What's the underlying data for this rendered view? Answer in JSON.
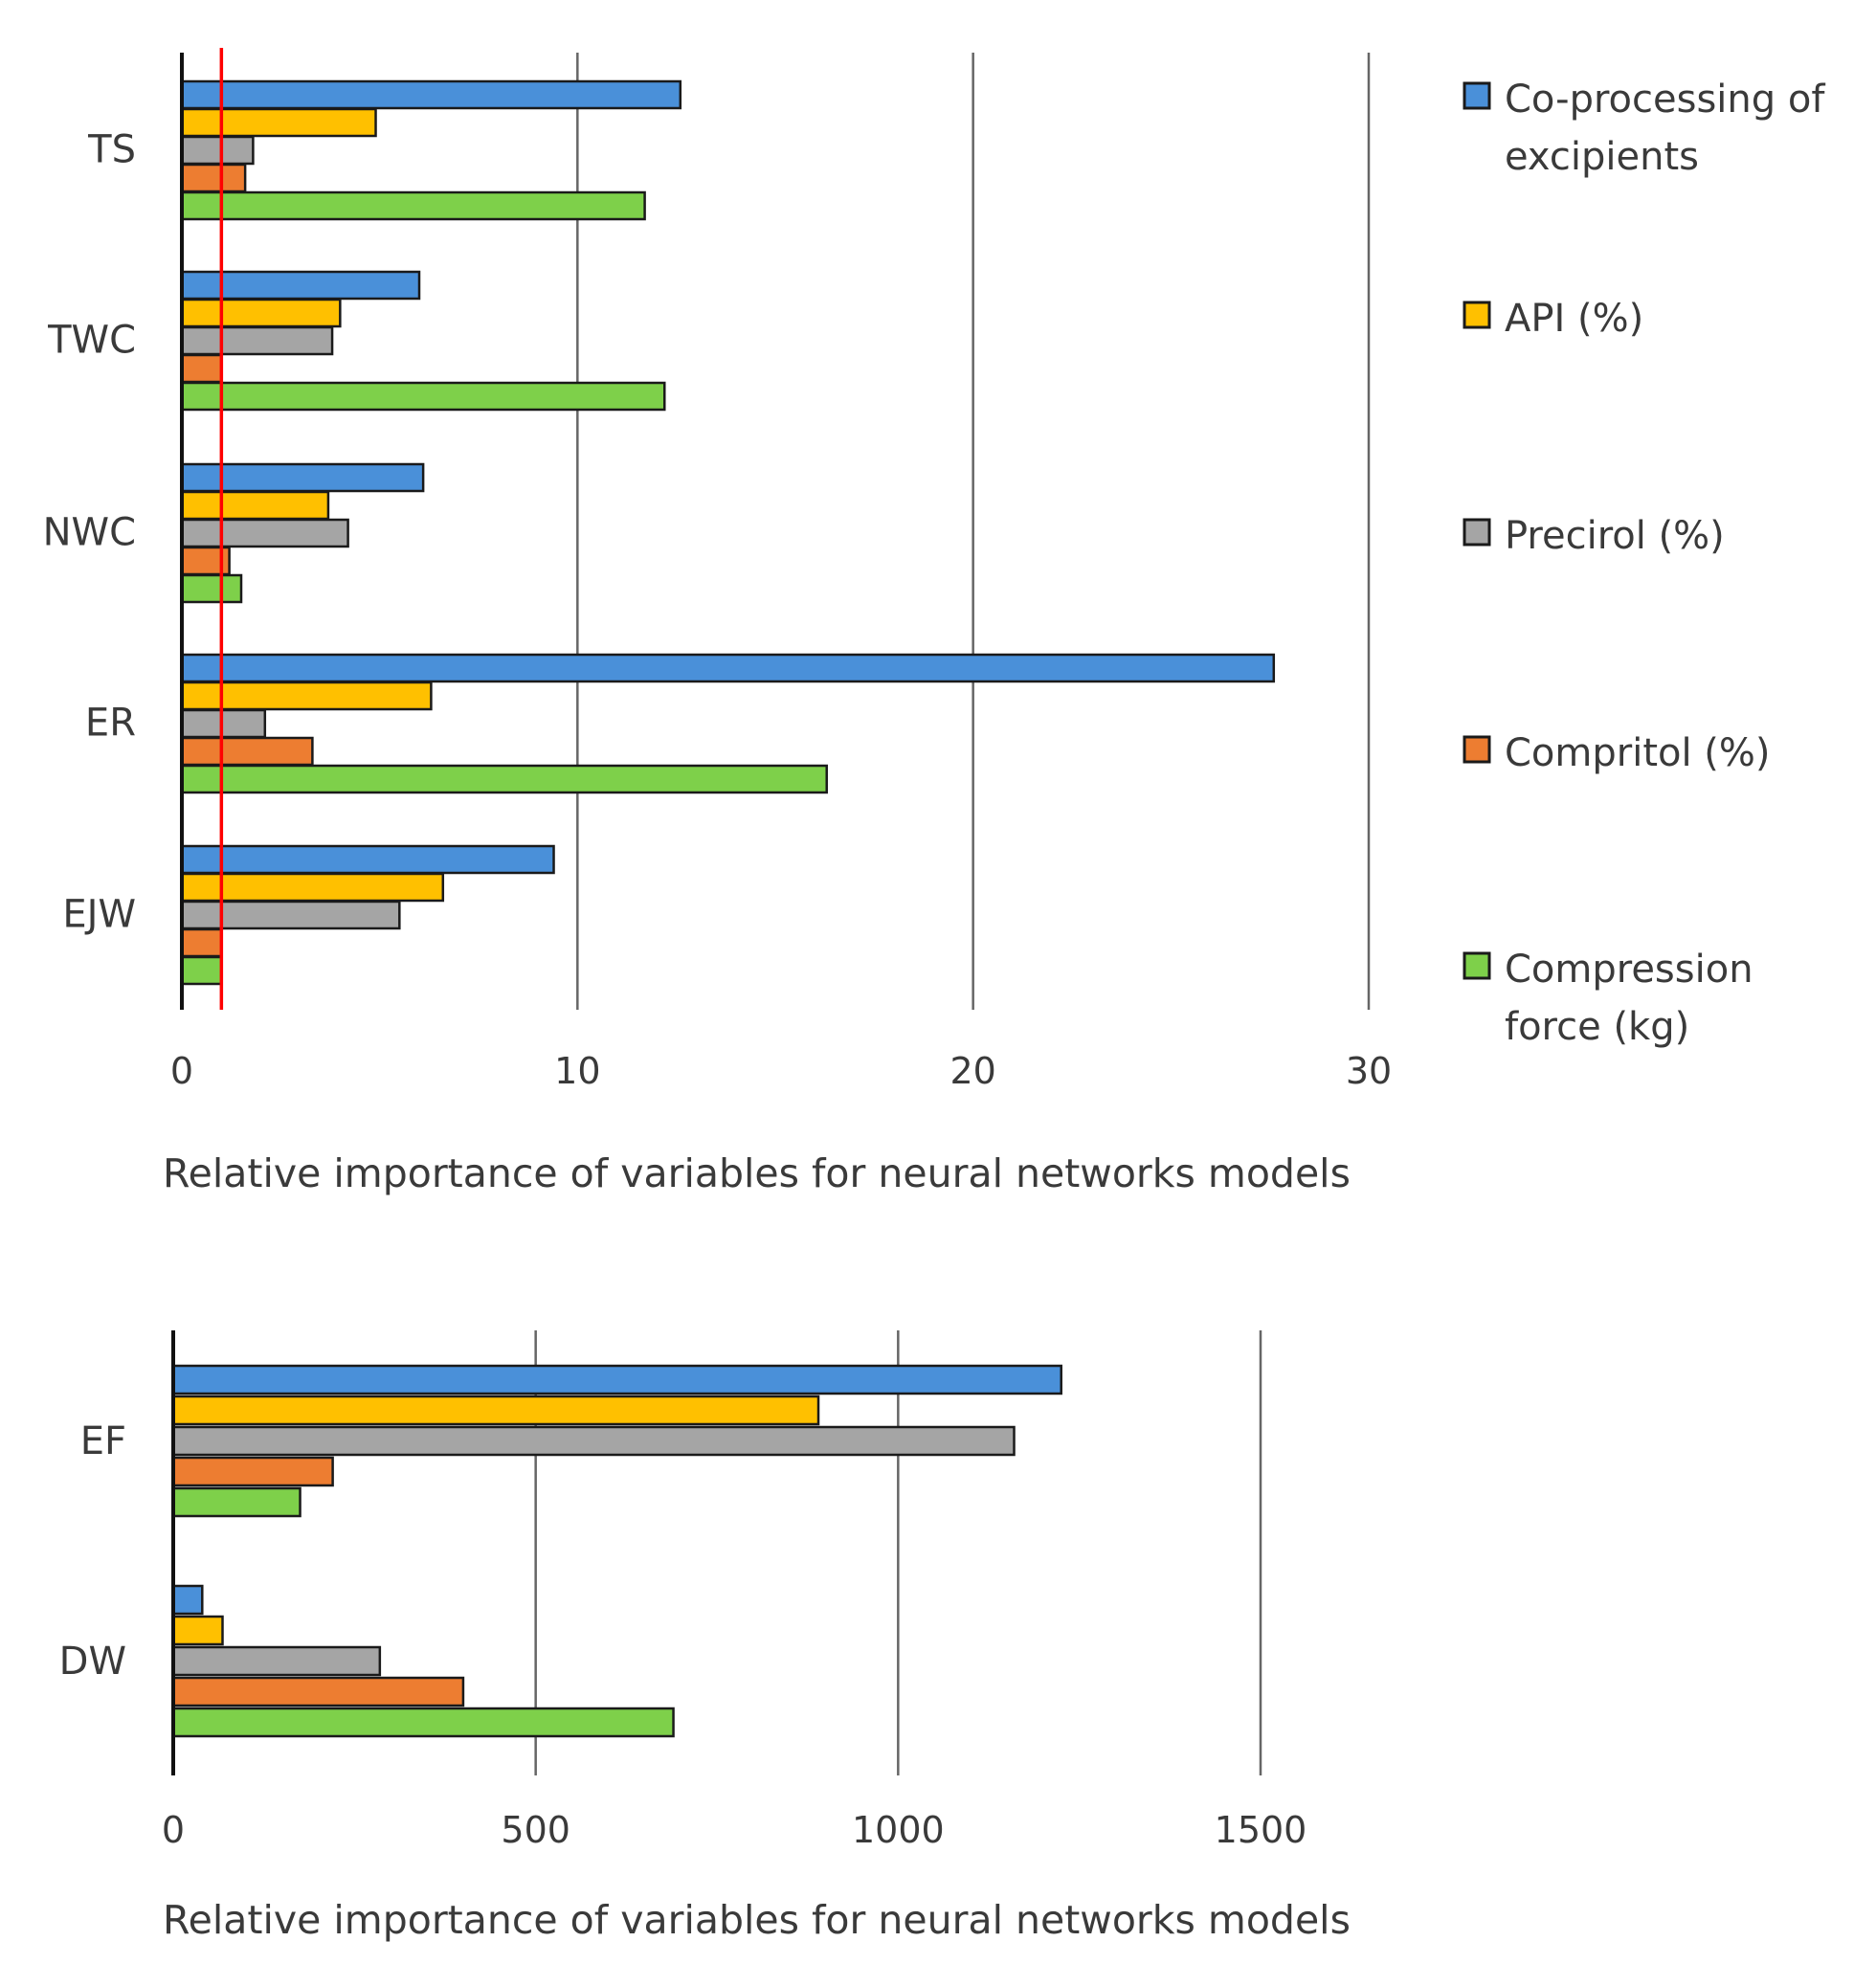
{
  "series": [
    {
      "name": "Co-processing of excipients",
      "legend_lines": [
        "Co-processing of",
        "excipients"
      ],
      "color": "#4a90d9"
    },
    {
      "name": "API (%)",
      "legend_lines": [
        "API (%)"
      ],
      "color": "#ffc000"
    },
    {
      "name": "Precirol (%)",
      "legend_lines": [
        "Precirol (%)"
      ],
      "color": "#a5a5a5"
    },
    {
      "name": "Compritol (%)",
      "legend_lines": [
        "Compritol (%)"
      ],
      "color": "#ed7d31"
    },
    {
      "name": "Compression force (kg)",
      "legend_lines": [
        "Compression",
        "force (kg)"
      ],
      "color": "#7ed04a"
    }
  ],
  "chart_data": [
    {
      "type": "bar",
      "orientation": "horizontal",
      "categories": [
        "TS",
        "TWC",
        "NWC",
        "ER",
        "EJW"
      ],
      "series": [
        {
          "name": "Co-processing of excipients",
          "values": [
            12.6,
            6.0,
            6.1,
            27.6,
            9.4
          ]
        },
        {
          "name": "API (%)",
          "values": [
            4.9,
            4.0,
            3.7,
            6.3,
            6.6
          ]
        },
        {
          "name": "Precirol (%)",
          "values": [
            1.8,
            3.8,
            4.2,
            2.1,
            5.5
          ]
        },
        {
          "name": "Compritol (%)",
          "values": [
            1.6,
            1.0,
            1.2,
            3.3,
            1.0
          ]
        },
        {
          "name": "Compression force (kg)",
          "values": [
            11.7,
            12.2,
            1.5,
            16.3,
            1.0
          ]
        }
      ],
      "xlim": [
        0,
        30
      ],
      "xticks": [
        "0",
        "10",
        "20",
        "30"
      ],
      "xlabel": "Relative importance of variables for neural networks models",
      "reference_line": 1,
      "reference_line_color": "#ff0000",
      "grid": true,
      "legend": "right"
    },
    {
      "type": "bar",
      "orientation": "horizontal",
      "categories": [
        "EF",
        "DW"
      ],
      "series": [
        {
          "name": "Co-processing of excipients",
          "values": [
            1225,
            40
          ]
        },
        {
          "name": "API (%)",
          "values": [
            890,
            68
          ]
        },
        {
          "name": "Precirol (%)",
          "values": [
            1160,
            285
          ]
        },
        {
          "name": "Compritol (%)",
          "values": [
            220,
            400
          ]
        },
        {
          "name": "Compression force (kg)",
          "values": [
            175,
            690
          ]
        }
      ],
      "xlim": [
        0,
        1500
      ],
      "xticks": [
        "0",
        "500",
        "1000",
        "1500"
      ],
      "xlabel": "Relative importance of variables for neural networks models",
      "grid": true,
      "xticks_position": "bottom"
    }
  ]
}
